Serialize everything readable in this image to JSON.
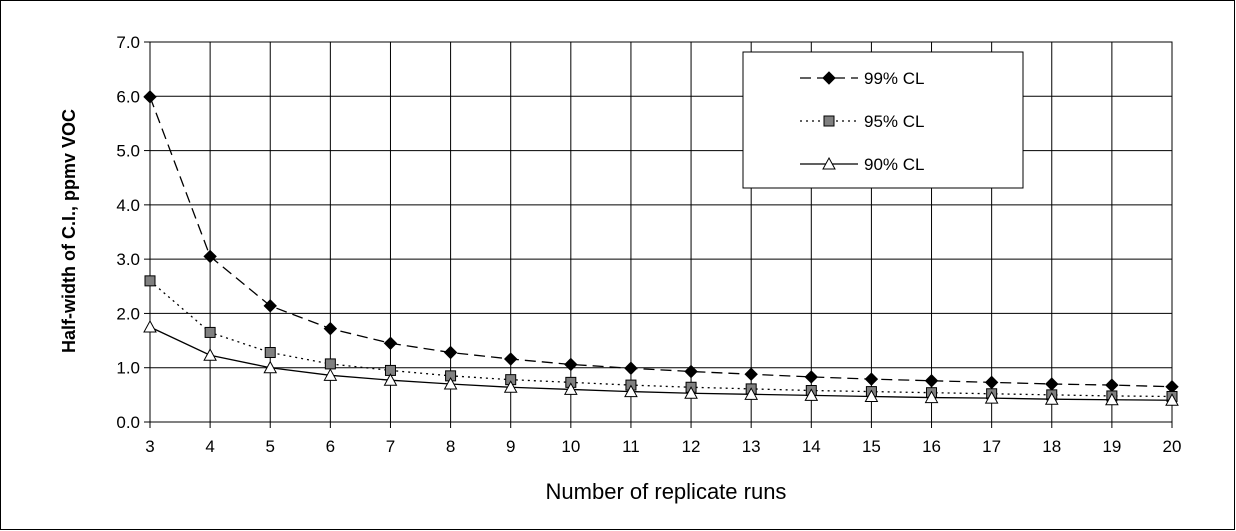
{
  "chart_data": {
    "type": "line",
    "title": "",
    "xlabel": "Number of replicate runs",
    "ylabel": "Half-width of C.I., ppmv VOC",
    "x": [
      3,
      4,
      5,
      6,
      7,
      8,
      9,
      10,
      11,
      12,
      13,
      14,
      15,
      16,
      17,
      18,
      19,
      20
    ],
    "x_tick_labels": [
      "3",
      "4",
      "5",
      "6",
      "7",
      "8",
      "9",
      "10",
      "11",
      "12",
      "13",
      "14",
      "15",
      "16",
      "17",
      "18",
      "19",
      "20"
    ],
    "y_tick_labels": [
      "0.0",
      "1.0",
      "2.0",
      "3.0",
      "4.0",
      "5.0",
      "6.0",
      "7.0"
    ],
    "xlim": [
      3,
      20
    ],
    "ylim": [
      0,
      7
    ],
    "grid": true,
    "legend_position": "top-right",
    "series": [
      {
        "name": "99% CL",
        "marker": "diamond",
        "line_style": "dashed",
        "color": "#000000",
        "values": [
          5.99,
          3.05,
          2.14,
          1.72,
          1.45,
          1.28,
          1.16,
          1.06,
          0.99,
          0.93,
          0.88,
          0.83,
          0.79,
          0.76,
          0.73,
          0.7,
          0.68,
          0.65
        ]
      },
      {
        "name": "95% CL",
        "marker": "square",
        "line_style": "dotted",
        "color": "#808080",
        "values": [
          2.6,
          1.65,
          1.28,
          1.07,
          0.95,
          0.85,
          0.78,
          0.73,
          0.68,
          0.64,
          0.61,
          0.58,
          0.56,
          0.54,
          0.52,
          0.5,
          0.48,
          0.47
        ]
      },
      {
        "name": "90% CL",
        "marker": "triangle",
        "line_style": "solid",
        "color": "#ffffff",
        "values": [
          1.75,
          1.23,
          1.0,
          0.86,
          0.77,
          0.7,
          0.64,
          0.6,
          0.56,
          0.53,
          0.51,
          0.49,
          0.47,
          0.45,
          0.44,
          0.42,
          0.41,
          0.4
        ]
      }
    ]
  }
}
